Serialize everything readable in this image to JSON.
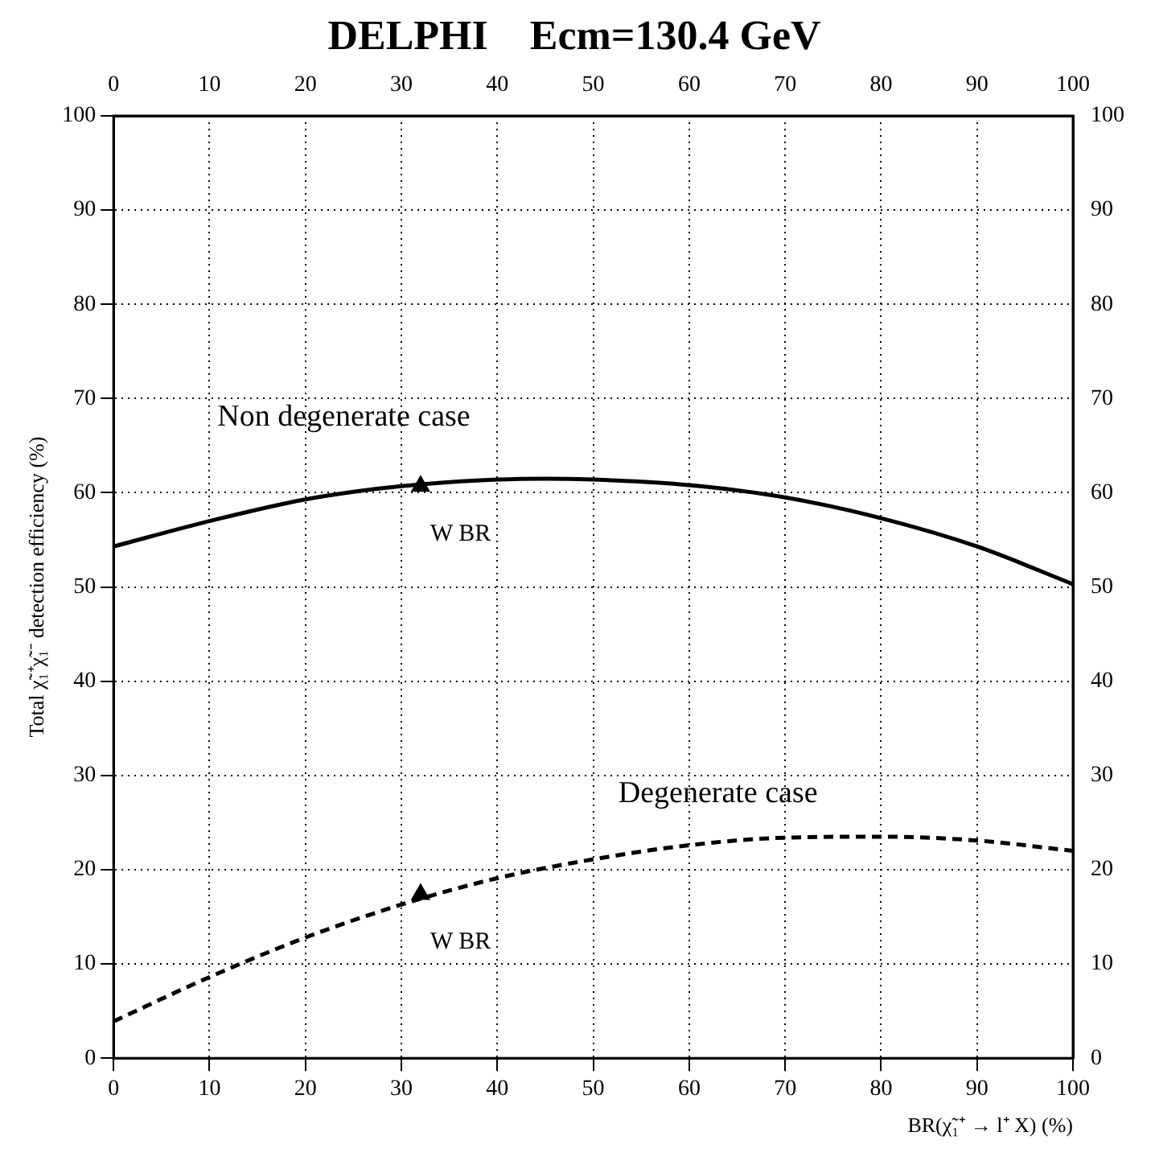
{
  "chart_data": {
    "type": "line",
    "title": "DELPHI    Ecm=130.4 GeV",
    "xlabel": "BR(χ̃₁⁺ → l⁺ X) (%)",
    "ylabel": "Total χ̃₁⁺χ̃₁⁻ detection efficiency (%)",
    "x": [
      0,
      10,
      20,
      30,
      40,
      45,
      50,
      60,
      70,
      80,
      90,
      100
    ],
    "series": [
      {
        "color": "#000000",
        "line_style": "solid",
        "marker": "none",
        "values": [
          54.3,
          57.0,
          59.3,
          60.7,
          61.4,
          61.5,
          61.4,
          60.8,
          59.5,
          57.3,
          54.3,
          50.3
        ]
      },
      {
        "color": "#000000",
        "line_style": "dashed",
        "marker": "none",
        "x": [
          0,
          10,
          20,
          30,
          40,
          50,
          60,
          70,
          80,
          90,
          100
        ],
        "values": [
          3.9,
          8.6,
          12.8,
          16.3,
          19.1,
          21.1,
          22.6,
          23.4,
          23.5,
          23.1,
          22.0
        ]
      },
      {
        "type": "scatter",
        "color": "#000000",
        "marker": "triangle",
        "x": [
          32,
          32
        ],
        "values": [
          60.7,
          17.4
        ]
      }
    ],
    "xlim": [
      0,
      100
    ],
    "xticks": [
      0,
      10,
      20,
      30,
      40,
      50,
      60,
      70,
      80,
      90,
      100
    ],
    "x2lim": [
      0,
      100
    ],
    "x2ticks": [
      0,
      10,
      20,
      30,
      40,
      50,
      60,
      70,
      80,
      90,
      100
    ],
    "ylim": [
      0,
      100
    ],
    "yticks": [
      0,
      10,
      20,
      30,
      40,
      50,
      60,
      70,
      80,
      90,
      100
    ],
    "y2lim": [
      0,
      100
    ],
    "y2ticks": [
      0,
      10,
      20,
      30,
      40,
      50,
      60,
      70,
      80,
      90,
      100
    ],
    "grid": true,
    "legend": false,
    "annotations": [
      "Non degenerate case",
      {
        "text": "W BR",
        "x": 32,
        "y": 60.7
      },
      "Degenerate case",
      {
        "text": "W BR",
        "x": 32,
        "y": 17.4
      }
    ]
  }
}
